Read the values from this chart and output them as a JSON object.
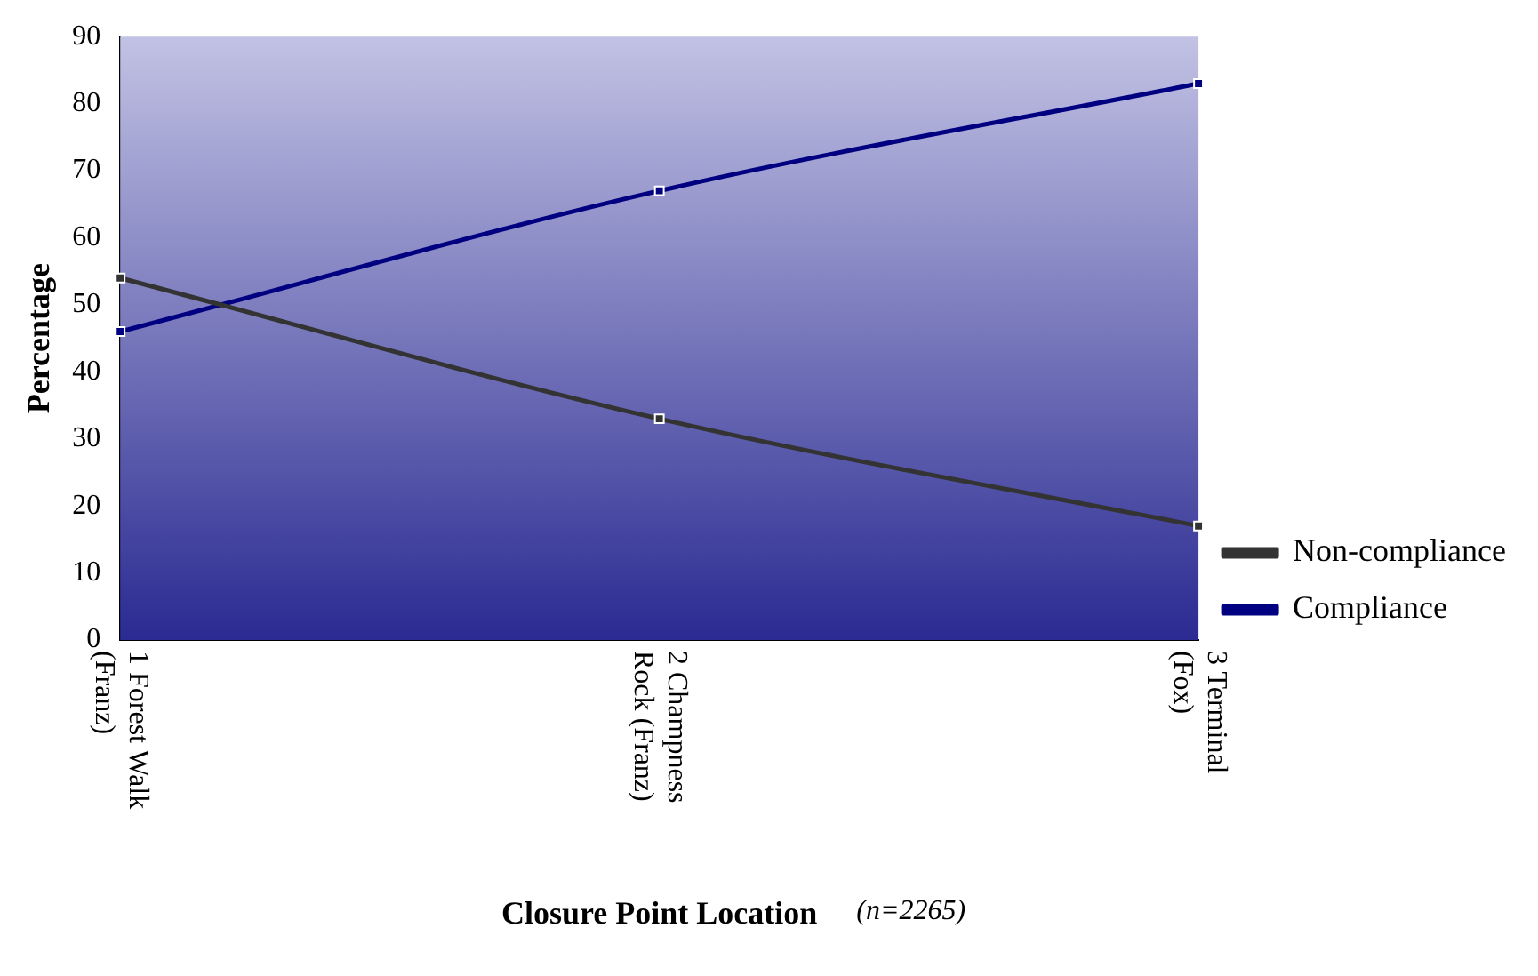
{
  "chart_data": {
    "type": "line",
    "xlabel": "Closure Point Location",
    "ylabel": "Percentage",
    "annotations": [
      "(n=2265)"
    ],
    "categories": [
      "1 Forest Walk (Franz)",
      "2 Champness Rock (Franz)",
      "3 Terminal (Fox)"
    ],
    "series": [
      {
        "name": "Non-compliance",
        "color": "#333333",
        "values": [
          54,
          33,
          17
        ]
      },
      {
        "name": "Compliance",
        "color": "#000080",
        "values": [
          46,
          67,
          83
        ]
      }
    ],
    "ylim": [
      0,
      90
    ],
    "yticks": [
      0,
      10,
      20,
      30,
      40,
      50,
      60,
      70,
      80,
      90
    ],
    "grid": false,
    "legend": "right",
    "marker": "square",
    "line_style": "solid"
  }
}
